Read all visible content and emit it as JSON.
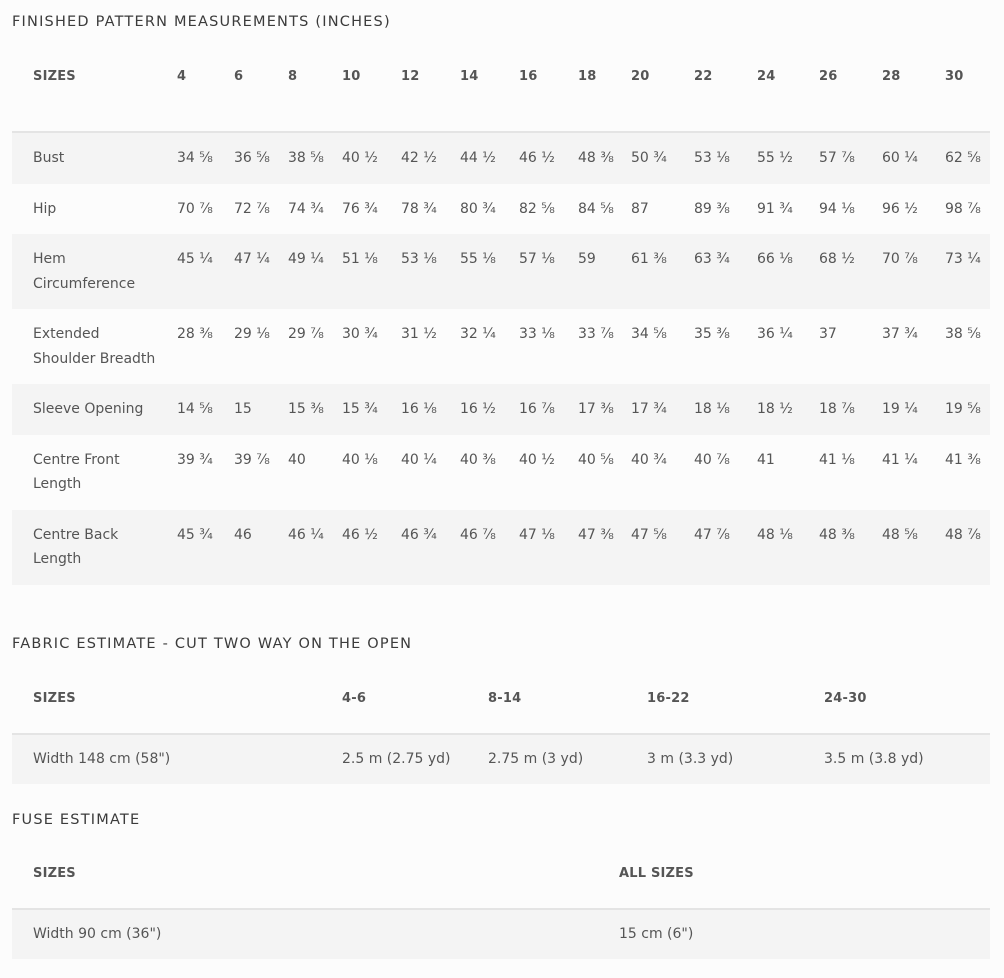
{
  "measurements": {
    "title": "FINISHED PATTERN MEASUREMENTS (INCHES)",
    "sizes_label": "SIZES",
    "sizes": [
      "4",
      "6",
      "8",
      "10",
      "12",
      "14",
      "16",
      "18",
      "20",
      "22",
      "24",
      "26",
      "28",
      "30"
    ],
    "rows": [
      {
        "label": "Bust",
        "values": [
          "34 ⅝",
          "36 ⅝",
          "38 ⅝",
          "40 ½",
          "42 ½",
          "44 ½",
          "46 ½",
          "48 ⅜",
          "50 ¾",
          "53 ⅛",
          "55 ½",
          "57 ⅞",
          "60 ¼",
          "62 ⅝"
        ]
      },
      {
        "label": "Hip",
        "values": [
          "70 ⅞",
          "72 ⅞",
          "74 ¾",
          "76 ¾",
          "78 ¾",
          "80 ¾",
          "82 ⅝",
          "84 ⅝",
          "87",
          "89 ⅜",
          "91 ¾",
          "94 ⅛",
          "96 ½",
          "98 ⅞"
        ]
      },
      {
        "label": "Hem Circumference",
        "values": [
          "45 ¼",
          "47 ¼",
          "49 ¼",
          "51 ⅛",
          "53 ⅛",
          "55 ⅛",
          "57 ⅛",
          "59",
          "61 ⅜",
          "63 ¾",
          "66 ⅛",
          "68 ½",
          "70 ⅞",
          "73 ¼"
        ]
      },
      {
        "label": "Extended Shoulder Breadth",
        "values": [
          "28 ⅜",
          "29 ⅛",
          "29 ⅞",
          "30 ¾",
          "31 ½",
          "32 ¼",
          "33 ⅛",
          "33 ⅞",
          "34 ⅝",
          "35 ⅜",
          "36 ¼",
          "37",
          "37 ¾",
          "38 ⅝"
        ]
      },
      {
        "label": "Sleeve Opening",
        "values": [
          "14 ⅝",
          "15",
          "15 ⅜",
          "15 ¾",
          "16 ⅛",
          "16 ½",
          "16 ⅞",
          "17 ⅜",
          "17 ¾",
          "18 ⅛",
          "18 ½",
          "18 ⅞",
          "19 ¼",
          "19 ⅝"
        ]
      },
      {
        "label": "Centre Front Length",
        "values": [
          "39 ¾",
          "39 ⅞",
          "40",
          "40 ⅛",
          "40 ¼",
          "40 ⅜",
          "40 ½",
          "40 ⅝",
          "40 ¾",
          "40 ⅞",
          "41",
          "41 ⅛",
          "41 ¼",
          "41 ⅜"
        ]
      },
      {
        "label": "Centre Back Length",
        "values": [
          "45 ¾",
          "46",
          "46 ¼",
          "46 ½",
          "46 ¾",
          "46 ⅞",
          "47 ⅛",
          "47 ⅜",
          "47 ⅝",
          "47 ⅞",
          "48 ⅛",
          "48 ⅜",
          "48 ⅝",
          "48 ⅞"
        ]
      }
    ]
  },
  "fabric": {
    "title": "FABRIC ESTIMATE - CUT TWO WAY ON THE OPEN",
    "sizes_label": "SIZES",
    "sizes": [
      "4-6",
      "8-14",
      "16-22",
      "24-30"
    ],
    "row": {
      "label": "Width 148 cm (58\")",
      "values": [
        "2.5 m (2.75 yd)",
        "2.75 m (3 yd)",
        "3 m (3.3 yd)",
        "3.5 m (3.8 yd)"
      ]
    }
  },
  "fuse": {
    "title": "FUSE ESTIMATE",
    "sizes_label": "SIZES",
    "sizes": [
      "ALL SIZES"
    ],
    "row": {
      "label": "Width 90 cm (36\")",
      "values": [
        "15 cm (6\")"
      ]
    }
  }
}
